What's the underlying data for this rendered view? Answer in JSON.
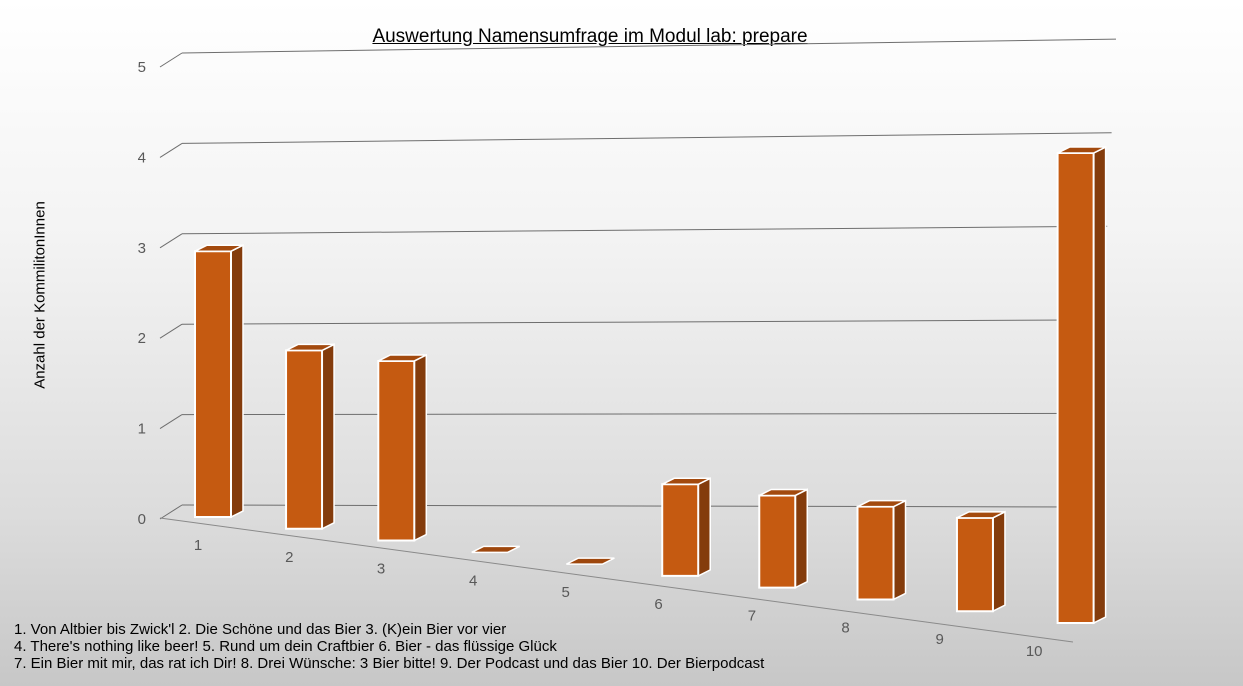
{
  "chart_data": {
    "type": "bar",
    "title": "Auswertung Namensumfrage im Modul lab: prepare",
    "ylabel": "Anzahl der KommilitonInnen",
    "xlabel": "",
    "categories": [
      "1",
      "2",
      "3",
      "4",
      "5",
      "6",
      "7",
      "8",
      "9",
      "10"
    ],
    "values": [
      3,
      2,
      2,
      0,
      0,
      1,
      1,
      1,
      1,
      5
    ],
    "ylim": [
      0,
      5
    ],
    "yticks": [
      0,
      1,
      2,
      3,
      4,
      5
    ],
    "grid": true,
    "bar_color": "#c55a11"
  },
  "legend_lines": [
    "1. Von Altbier bis Zwick'l  2. Die Schöne und das Bier  3. (K)ein Bier vor vier",
    "4. There's nothing like beer!  5. Rund um dein Craftbier  6. Bier - das flüssige Glück",
    "7. Ein Bier mit mir, das rat ich Dir!  8. Drei Wünsche: 3 Bier bitte!  9. Der Podcast und das Bier  10. Der Bierpodcast"
  ]
}
